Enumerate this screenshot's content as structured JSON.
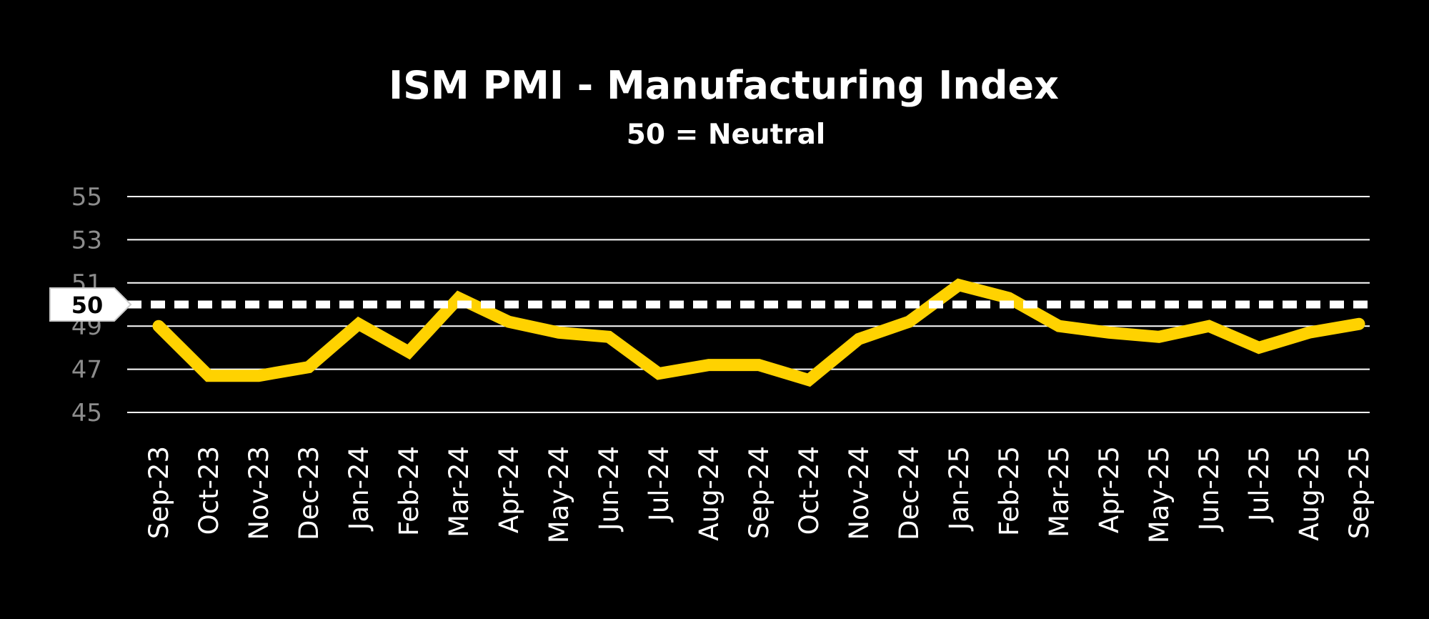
{
  "chart_data": {
    "type": "line",
    "title": "ISM PMI - Manufacturing Index",
    "subtitle": "50 = Neutral",
    "xlabel": "",
    "ylabel": "",
    "ylim": [
      45,
      55
    ],
    "yticks": [
      "45",
      "47",
      "49",
      "51",
      "53",
      "55"
    ],
    "grid": true,
    "categories": [
      "Sep-23",
      "Oct-23",
      "Nov-23",
      "Dec-23",
      "Jan-24",
      "Feb-24",
      "Mar-24",
      "Apr-24",
      "May-24",
      "Jun-24",
      "Jul-24",
      "Aug-24",
      "Sep-24",
      "Oct-24",
      "Nov-24",
      "Dec-24",
      "Jan-25",
      "Feb-25",
      "Mar-25",
      "Apr-25",
      "May-25",
      "Jun-25",
      "Jul-25",
      "Aug-25",
      "Sep-25"
    ],
    "series": [
      {
        "values": [
          49.0,
          46.7,
          46.7,
          47.1,
          49.1,
          47.8,
          50.3,
          49.2,
          48.7,
          48.5,
          46.8,
          47.2,
          47.2,
          46.5,
          48.4,
          49.2,
          50.9,
          50.3,
          49.0,
          48.7,
          48.5,
          49.0,
          48.0,
          48.7,
          49.1
        ],
        "color": "#FFD200"
      }
    ],
    "reference_line": {
      "value": 50,
      "label": "50",
      "color": "#ffffff"
    },
    "colors": {
      "background": "#000000",
      "line": "#FFD200",
      "gridline": "#ffffff",
      "ytick": "#8c8c8c",
      "xtick": "#ffffff"
    }
  }
}
